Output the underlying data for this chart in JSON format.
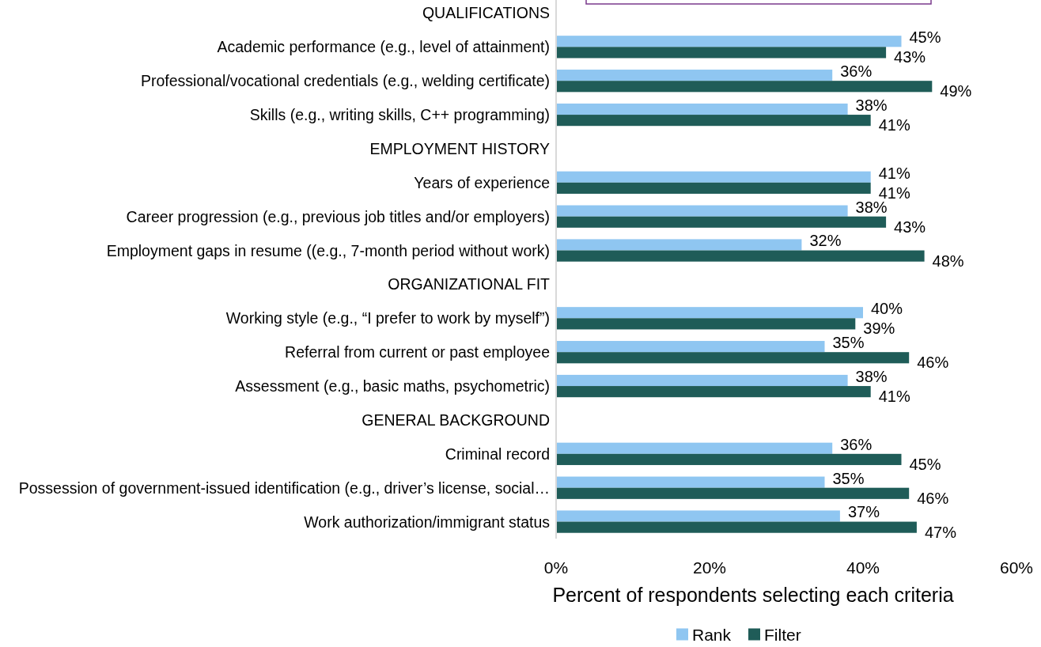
{
  "chart_data": {
    "type": "bar",
    "orientation": "horizontal",
    "categories": [
      "QUALIFICATIONS",
      "Academic performance (e.g., level of attainment)",
      "Professional/vocational credentials (e.g., welding certificate)",
      "Skills (e.g., writing skills, C++ programming)",
      "EMPLOYMENT HISTORY",
      "Years of experience",
      "Career progression (e.g., previous job titles and/or employers) ",
      "Employment gaps in resume ((e.g., 7-month period without work)",
      "ORGANIZATIONAL FIT",
      "Working style (e.g., “I prefer to work by myself”)",
      "Referral from current or past employee",
      "Assessment (e.g., basic maths, psychometric)",
      "GENERAL BACKGROUND",
      "Criminal record",
      "Possession of government-issued identification (e.g., driver’s license, social…",
      "Work authorization/immigrant status"
    ],
    "series": [
      {
        "name": "Rank",
        "color": "#8fc6f1",
        "values": [
          null,
          45,
          36,
          38,
          null,
          41,
          38,
          32,
          null,
          40,
          35,
          38,
          null,
          36,
          35,
          37
        ],
        "value_labels": [
          null,
          "45%",
          "36%",
          "38%",
          null,
          "41%",
          "38%",
          "32%",
          null,
          "40%",
          "35%",
          "38%",
          null,
          "36%",
          "35%",
          "37%"
        ]
      },
      {
        "name": "Filter",
        "color": "#1f5c58",
        "values": [
          null,
          43,
          49,
          41,
          null,
          41,
          43,
          48,
          null,
          39,
          46,
          41,
          null,
          45,
          46,
          47
        ],
        "value_labels": [
          null,
          "43%",
          "49%",
          "41%",
          null,
          "41%",
          "43%",
          "48%",
          null,
          "39%",
          "46%",
          "41%",
          null,
          "45%",
          "46%",
          "47%"
        ]
      }
    ],
    "xlabel": "Percent of respondents selecting each criteria",
    "xlim": [
      0,
      60
    ],
    "xticks": [
      {
        "value": 0,
        "label": "0%"
      },
      {
        "value": 20,
        "label": "20%"
      },
      {
        "value": 40,
        "label": "40%"
      },
      {
        "value": 60,
        "label": "60%"
      }
    ],
    "grid": false,
    "legend": "bottom"
  }
}
